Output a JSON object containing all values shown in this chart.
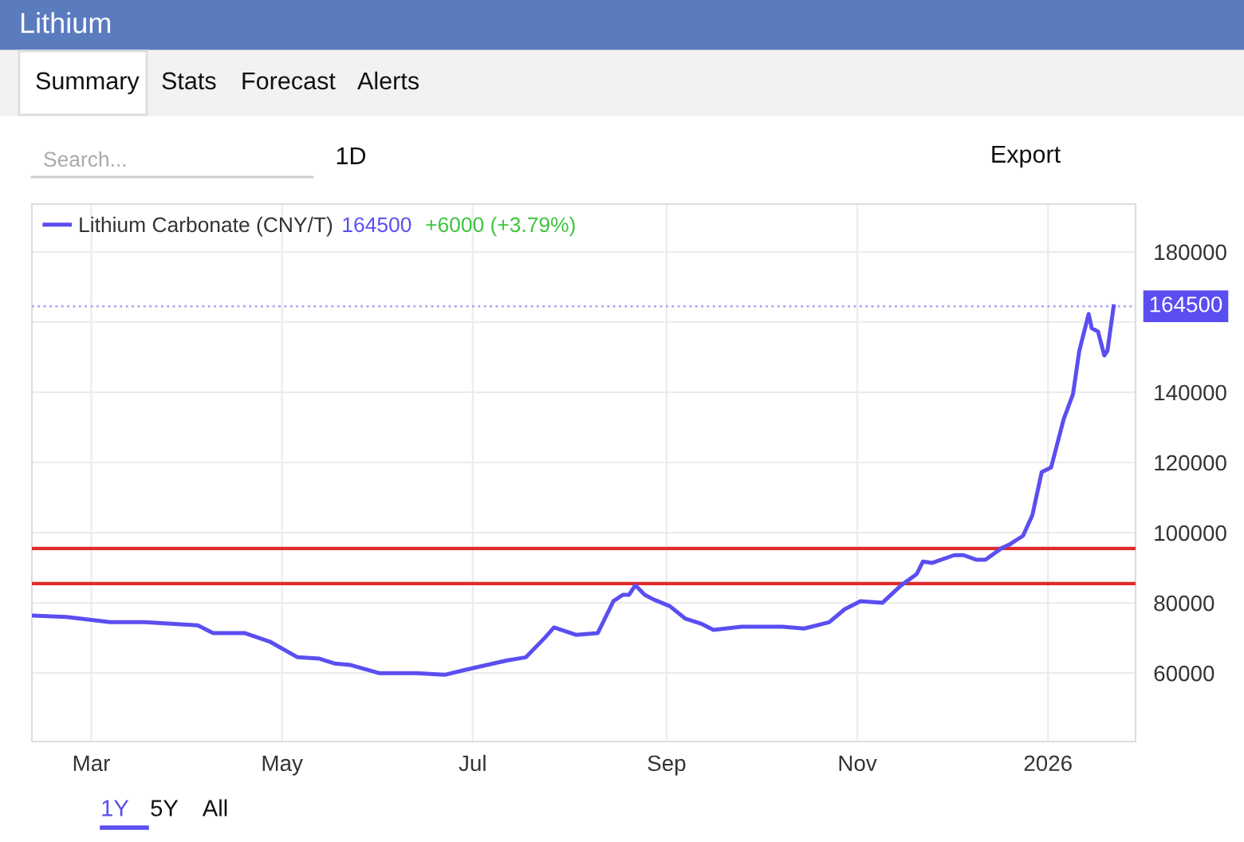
{
  "chart_data": {
    "type": "line",
    "title": "Lithium",
    "x": [
      "2025-02-10",
      "2025-02-21",
      "2025-03-07",
      "2025-03-18",
      "2025-04-04",
      "2025-04-09",
      "2025-04-19",
      "2025-04-27",
      "2025-05-06",
      "2025-05-13",
      "2025-05-18",
      "2025-05-23",
      "2025-06-01",
      "2025-06-13",
      "2025-06-22",
      "2025-06-29",
      "2025-07-12",
      "2025-07-18",
      "2025-07-24",
      "2025-07-27",
      "2025-08-03",
      "2025-08-10",
      "2025-08-15",
      "2025-08-18",
      "2025-08-20",
      "2025-08-22",
      "2025-08-25",
      "2025-08-28",
      "2025-09-02",
      "2025-09-07",
      "2025-09-12",
      "2025-09-16",
      "2025-09-25",
      "2025-10-08",
      "2025-10-15",
      "2025-10-23",
      "2025-10-28",
      "2025-11-02",
      "2025-11-09",
      "2025-11-15",
      "2025-11-20",
      "2025-11-22",
      "2025-11-25",
      "2025-12-02",
      "2025-12-05",
      "2025-12-09",
      "2025-12-12",
      "2025-12-17",
      "2025-12-20",
      "2025-12-24",
      "2025-12-27",
      "2025-12-30",
      "2026-01-02",
      "2026-01-06",
      "2026-01-09",
      "2026-01-11",
      "2026-01-14",
      "2026-01-15",
      "2026-01-17",
      "2026-01-19",
      "2026-01-20",
      "2026-01-22"
    ],
    "series": [
      {
        "name": "Lithium Carbonate (CNY/T)",
        "color": "#5b4ef0",
        "values": [
          76400,
          76000,
          74500,
          74500,
          73600,
          71400,
          71400,
          69000,
          64500,
          64100,
          62700,
          62300,
          60000,
          60000,
          59500,
          61000,
          63600,
          64500,
          70000,
          73000,
          70900,
          71400,
          80500,
          82300,
          82300,
          85000,
          82300,
          80900,
          79100,
          75500,
          74100,
          72300,
          73200,
          73200,
          72700,
          74500,
          78200,
          80500,
          80000,
          85000,
          88200,
          91800,
          91400,
          93600,
          93600,
          92300,
          92300,
          95500,
          96800,
          99100,
          105000,
          117300,
          118600,
          132300,
          139500,
          151800,
          162300,
          158200,
          157300,
          150500,
          151800,
          164500
        ]
      }
    ],
    "xlim": [
      "2025-02-10",
      "2026-01-29"
    ],
    "xticks": [
      {
        "value": "2025-03-01",
        "label": "Mar"
      },
      {
        "value": "2025-05-01",
        "label": "May"
      },
      {
        "value": "2025-07-01",
        "label": "Jul"
      },
      {
        "value": "2025-09-01",
        "label": "Sep"
      },
      {
        "value": "2025-11-01",
        "label": "Nov"
      },
      {
        "value": "2026-01-01",
        "label": "2026"
      }
    ],
    "ylim": [
      40500,
      193600
    ],
    "yticks": [
      60000,
      80000,
      100000,
      120000,
      140000,
      {
        "value": 160000,
        "label": null
      },
      180000
    ],
    "grid": true,
    "legend": "top left",
    "ref_lines": [
      {
        "axis": "y",
        "value": 164500,
        "label": "164500",
        "color": "#a9a6f5",
        "line_style": "dotted"
      },
      {
        "axis": "y",
        "value": 95500,
        "color": "#e02b2b",
        "line_style": "solid"
      },
      {
        "axis": "y",
        "value": 85500,
        "color": "#e02b2b",
        "line_style": "solid"
      }
    ],
    "annotations": [
      "164500",
      "+6000 (+3.79%)",
      "Summary",
      "Stats",
      "Forecast",
      "Alerts",
      "Search...",
      "1D",
      "Export",
      "1Y",
      "5Y",
      "All"
    ]
  }
}
